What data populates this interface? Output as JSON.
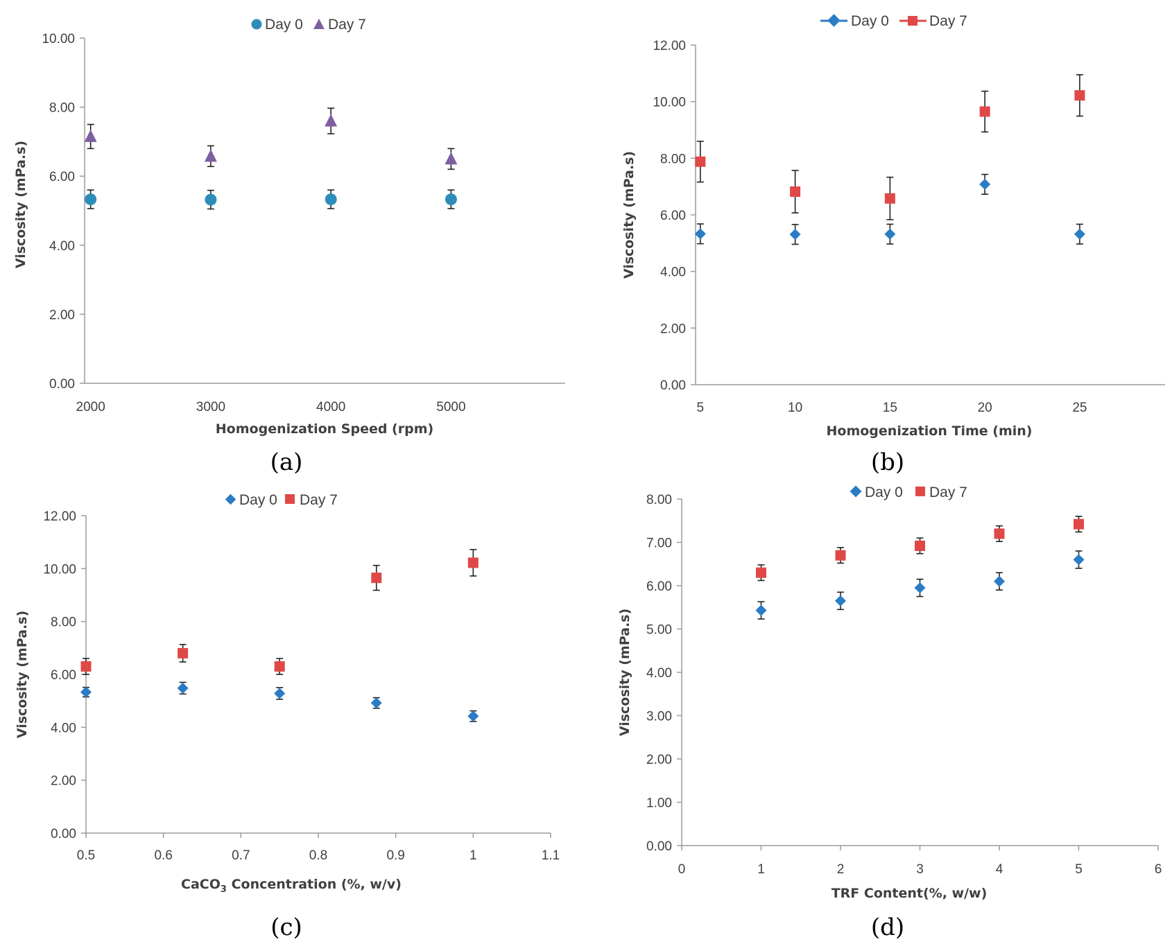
{
  "chart_data": [
    {
      "id": "a",
      "type": "scatter",
      "panel_label": "(a)",
      "xlabel": "Homogenization Speed (rpm)",
      "ylabel": "Viscosity (mPa.s)",
      "x_tick_labels": [
        "2000",
        "3000",
        "4000",
        "5000"
      ],
      "y_tick_labels": [
        "0.00",
        "2.00",
        "4.00",
        "6.00",
        "8.00",
        "10.00"
      ],
      "xlim": [
        1950,
        5950
      ],
      "ylim": [
        0,
        10
      ],
      "series": [
        {
          "name": "Day 0",
          "marker": "circle",
          "color": "#2E8DB8",
          "x": [
            2000,
            3000,
            4000,
            5000
          ],
          "y": [
            5.33,
            5.32,
            5.33,
            5.33
          ],
          "err": [
            0.27,
            0.27,
            0.27,
            0.27
          ]
        },
        {
          "name": "Day 7",
          "marker": "triangle",
          "color": "#7E5FA0",
          "x": [
            2000,
            3000,
            4000,
            5000
          ],
          "y": [
            7.15,
            6.58,
            7.6,
            6.5
          ],
          "err": [
            0.35,
            0.3,
            0.37,
            0.3
          ]
        }
      ],
      "legend": {
        "placement": "top-center",
        "items": [
          "Day 0",
          "Day 7"
        ]
      }
    },
    {
      "id": "b",
      "type": "line",
      "panel_label": "(b)",
      "xlabel": "Homogenization Time (min)",
      "ylabel": "Viscosity (mPa.s)",
      "x_tick_labels": [
        "5",
        "10",
        "15",
        "20",
        "25"
      ],
      "y_tick_labels": [
        "0.00",
        "2.00",
        "4.00",
        "6.00",
        "8.00",
        "10.00",
        "12.00"
      ],
      "xlim": [
        4.75,
        29.5
      ],
      "ylim": [
        0,
        12
      ],
      "series": [
        {
          "name": "Day 0",
          "marker": "diamond",
          "color": "#2B7CC4",
          "x": [
            5,
            10,
            15,
            20,
            25
          ],
          "y": [
            5.33,
            5.31,
            5.32,
            7.08,
            5.32
          ],
          "err": [
            0.35,
            0.35,
            0.35,
            0.35,
            0.35
          ]
        },
        {
          "name": "Day 7",
          "marker": "square",
          "color": "#E04848",
          "x": [
            5,
            10,
            15,
            20,
            25
          ],
          "y": [
            7.88,
            6.82,
            6.58,
            9.65,
            10.22
          ],
          "err": [
            0.72,
            0.75,
            0.75,
            0.72,
            0.73
          ]
        }
      ],
      "legend": {
        "placement": "top-center",
        "items": [
          "Day 0",
          "Day 7"
        ]
      }
    },
    {
      "id": "c",
      "type": "scatter",
      "panel_label": "(c)",
      "xlabel_main": "CaCO",
      "xlabel_sub": "3",
      "xlabel_rest": " Concentration (%, w/v)",
      "ylabel": "Viscosity (mPa.s)",
      "x_tick_labels": [
        "0.5",
        "0.6",
        "0.7",
        "0.8",
        "0.9",
        "1",
        "1.1"
      ],
      "y_tick_labels": [
        "0.00",
        "2.00",
        "4.00",
        "6.00",
        "8.00",
        "10.00",
        "12.00"
      ],
      "xlim": [
        0.5,
        1.1
      ],
      "ylim": [
        0,
        12
      ],
      "series": [
        {
          "name": "Day 0",
          "marker": "diamond",
          "color": "#2B7CC4",
          "x": [
            0.5,
            0.625,
            0.75,
            0.875,
            1.0
          ],
          "y": [
            5.33,
            5.48,
            5.28,
            4.92,
            4.42
          ],
          "err": [
            0.18,
            0.22,
            0.22,
            0.2,
            0.2
          ]
        },
        {
          "name": "Day 7",
          "marker": "square",
          "color": "#E04848",
          "x": [
            0.5,
            0.625,
            0.75,
            0.875,
            1.0
          ],
          "y": [
            6.3,
            6.8,
            6.3,
            9.65,
            10.22
          ],
          "err": [
            0.3,
            0.33,
            0.3,
            0.47,
            0.5
          ]
        }
      ],
      "legend": {
        "placement": "top-center",
        "items": [
          "Day 0",
          "Day 7"
        ]
      }
    },
    {
      "id": "d",
      "type": "scatter",
      "panel_label": "(d)",
      "xlabel": "TRF Content(%, w/w)",
      "ylabel": "Viscosity (mPa.s)",
      "x_tick_labels": [
        "0",
        "1",
        "2",
        "3",
        "4",
        "5",
        "6"
      ],
      "y_tick_labels": [
        "0.00",
        "1.00",
        "2.00",
        "3.00",
        "4.00",
        "5.00",
        "6.00",
        "7.00",
        "8.00"
      ],
      "xlim": [
        0,
        6
      ],
      "ylim": [
        0,
        8
      ],
      "series": [
        {
          "name": "Day 0",
          "marker": "diamond",
          "color": "#2B7CC4",
          "x": [
            1,
            2,
            3,
            4,
            5
          ],
          "y": [
            5.43,
            5.65,
            5.95,
            6.1,
            6.6
          ],
          "err": [
            0.2,
            0.2,
            0.2,
            0.2,
            0.2
          ]
        },
        {
          "name": "Day 7",
          "marker": "square",
          "color": "#E04848",
          "x": [
            1,
            2,
            3,
            4,
            5
          ],
          "y": [
            6.3,
            6.7,
            6.92,
            7.2,
            7.42
          ],
          "err": [
            0.18,
            0.18,
            0.18,
            0.18,
            0.18
          ]
        }
      ],
      "legend": {
        "placement": "top-center",
        "items": [
          "Day 0",
          "Day 7"
        ]
      }
    }
  ]
}
